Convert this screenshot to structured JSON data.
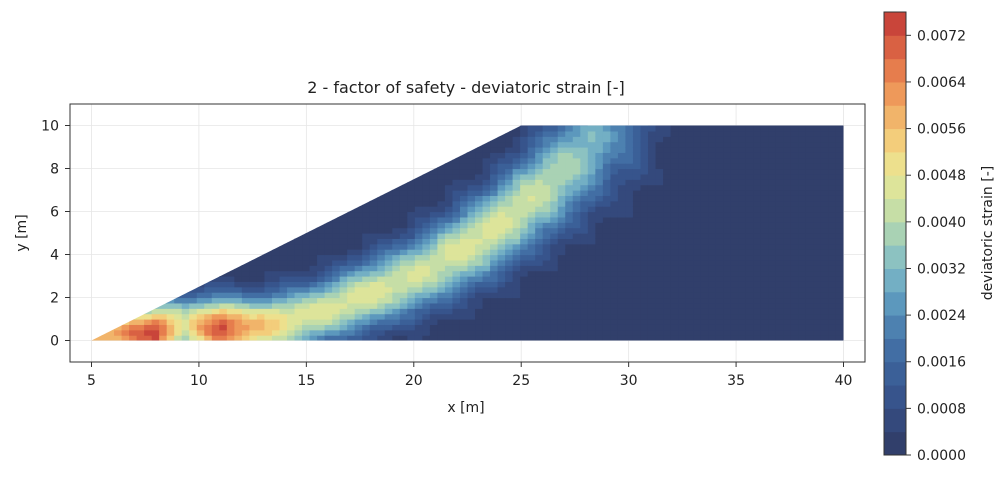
{
  "chart_data": {
    "type": "heatmap",
    "subtype": "filled-contour",
    "title": "2 - factor of safety - deviatoric strain [-]",
    "xlabel": "x [m]",
    "ylabel": "y [m]",
    "xlim": [
      4,
      41
    ],
    "ylim": [
      -1,
      11
    ],
    "xticks": [
      5,
      10,
      15,
      20,
      25,
      30,
      35,
      40
    ],
    "yticks": [
      0,
      2,
      4,
      6,
      8,
      10
    ],
    "grid": true,
    "domain": {
      "description": "slope geometry",
      "vertices": [
        [
          5,
          0
        ],
        [
          40,
          0
        ],
        [
          40,
          10
        ],
        [
          25,
          10
        ]
      ]
    },
    "colorbar": {
      "label": "deviatoric strain [-]",
      "min": 0.0,
      "max": 0.0076,
      "levels": 19,
      "tick_values": [
        0.0,
        0.0008,
        0.0016,
        0.0024,
        0.0032,
        0.004,
        0.0048,
        0.0056,
        0.0064,
        0.0072
      ],
      "tick_labels": [
        "0.0000",
        "0.0008",
        "0.0016",
        "0.0024",
        "0.0032",
        "0.0040",
        "0.0048",
        "0.0056",
        "0.0064",
        "0.0072"
      ],
      "colormap": "RdYlBu_r",
      "colors": [
        "#313f6b",
        "#34497c",
        "#37548c",
        "#3b6098",
        "#426ea4",
        "#4d81b0",
        "#5c98bd",
        "#73afc4",
        "#8cc2c1",
        "#a9d2b4",
        "#c6dea6",
        "#dde49a",
        "#ede08d",
        "#f3cd7b",
        "#f1b46a",
        "#ee995a",
        "#e67d4d",
        "#d96143",
        "#c9453a"
      ]
    },
    "shear_band": {
      "description": "peak deviatoric strain along the slip surface",
      "points": [
        {
          "x": 6.0,
          "y": 0.3,
          "strain": 0.006
        },
        {
          "x": 8.0,
          "y": 0.4,
          "strain": 0.0075
        },
        {
          "x": 9.3,
          "y": 0.7,
          "strain": 0.0045
        },
        {
          "x": 11.0,
          "y": 0.6,
          "strain": 0.0075
        },
        {
          "x": 12.5,
          "y": 0.6,
          "strain": 0.0058
        },
        {
          "x": 15.0,
          "y": 1.1,
          "strain": 0.0046
        },
        {
          "x": 18.0,
          "y": 2.2,
          "strain": 0.0046
        },
        {
          "x": 20.0,
          "y": 3.0,
          "strain": 0.0044
        },
        {
          "x": 23.5,
          "y": 5.0,
          "strain": 0.0046
        },
        {
          "x": 26.0,
          "y": 7.0,
          "strain": 0.0042
        },
        {
          "x": 28.3,
          "y": 9.0,
          "strain": 0.0033
        },
        {
          "x": 29.5,
          "y": 10.0,
          "strain": 0.0022
        }
      ]
    }
  }
}
